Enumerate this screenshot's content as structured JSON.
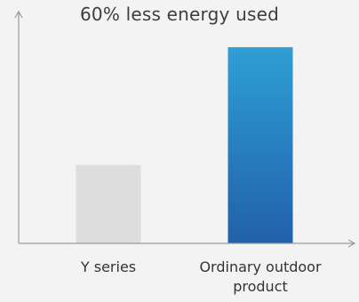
{
  "chart_data": {
    "type": "bar",
    "title": "60% less energy used",
    "categories": [
      "Y series",
      "Ordinary outdoor product"
    ],
    "values": [
      40,
      100
    ],
    "ylim": [
      0,
      115
    ],
    "xlabel": "",
    "ylabel": "",
    "grid": false,
    "legend": "none",
    "bar_colors": [
      {
        "top": "#dddddd",
        "bottom": "#dddddd"
      },
      {
        "top": "#2f9fd5",
        "bottom": "#2160aa"
      }
    ],
    "axis_color": "#9a9a9a"
  }
}
